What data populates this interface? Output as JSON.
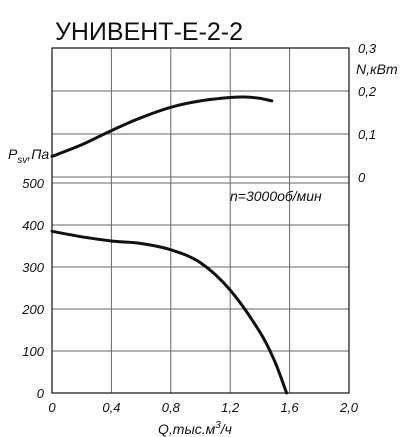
{
  "chart_data": {
    "type": "line",
    "title": "УНИВЕНТ-Е-2-2",
    "annotation": "n=3000об/мин",
    "x_axis": {
      "label_main": "Q,тыс.м",
      "label_sup": "3",
      "label_tail": "/ч",
      "range": [
        0,
        2.0
      ],
      "ticks": [
        "0",
        "0,4",
        "0,8",
        "1,2",
        "1,6",
        "2,0"
      ],
      "tick_values": [
        0,
        0.4,
        0.8,
        1.2,
        1.6,
        2.0
      ]
    },
    "y_left": {
      "label_main": "P",
      "label_sub": "sv",
      "label_tail": ",Па",
      "range": [
        0,
        500
      ],
      "ticks": [
        "0",
        "100",
        "200",
        "300",
        "400",
        "500"
      ],
      "tick_values": [
        0,
        100,
        200,
        300,
        400,
        500
      ]
    },
    "y_right": {
      "label": "N,кВт",
      "range": [
        0,
        0.3
      ],
      "ticks": [
        "0",
        "0,1",
        "0,2",
        "0,3"
      ],
      "tick_values": [
        0,
        0.1,
        0.2,
        0.3
      ]
    },
    "series": [
      {
        "axis": "left",
        "x": [
          0,
          0.2,
          0.4,
          0.6,
          0.8,
          1.0,
          1.2,
          1.4,
          1.5,
          1.58
        ],
        "y": [
          385,
          372,
          362,
          356,
          341,
          310,
          245,
          145,
          75,
          0
        ]
      },
      {
        "axis": "right",
        "x": [
          0,
          0.2,
          0.4,
          0.6,
          0.8,
          1.0,
          1.2,
          1.3,
          1.4,
          1.48
        ],
        "y": [
          0.048,
          0.075,
          0.108,
          0.138,
          0.162,
          0.177,
          0.185,
          0.186,
          0.183,
          0.177
        ]
      }
    ]
  }
}
